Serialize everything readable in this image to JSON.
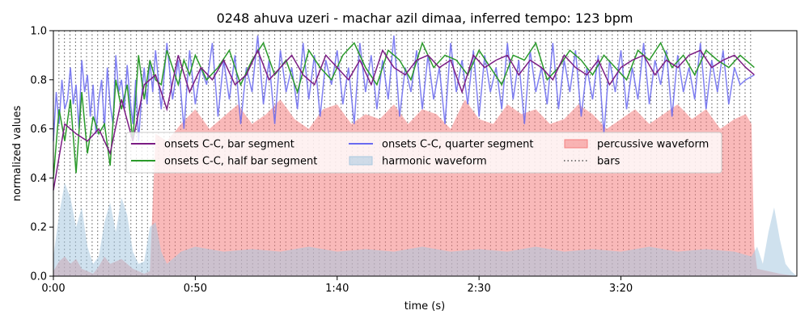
{
  "chart_data": {
    "type": "line",
    "title": "0248 ahuva uzeri - machar azil dimaa, inferred tempo: 123 bpm",
    "xlabel": "time (s)",
    "ylabel": "normalized values",
    "xlim": [
      0,
      262
    ],
    "ylim": [
      0,
      1
    ],
    "x_ticks": [
      {
        "value": 0,
        "label": "0:00"
      },
      {
        "value": 50,
        "label": "0:50"
      },
      {
        "value": 100,
        "label": "1:40"
      },
      {
        "value": 150,
        "label": "2:30"
      },
      {
        "value": 200,
        "label": "3:20"
      }
    ],
    "y_ticks": [
      {
        "value": 0.0,
        "label": "0.0"
      },
      {
        "value": 0.2,
        "label": "0.2"
      },
      {
        "value": 0.4,
        "label": "0.4"
      },
      {
        "value": 0.6,
        "label": "0.6"
      },
      {
        "value": 0.8,
        "label": "0.8"
      },
      {
        "value": 1.0,
        "label": "1.0"
      }
    ],
    "grid": false,
    "legend_position": "center",
    "bars_spacing_s": 1.95,
    "bars_end_s": 247,
    "series": [
      {
        "name": "onsets C-C, bar segment",
        "color": "#7b1c83",
        "kind": "line",
        "x": [
          0,
          4,
          8,
          12,
          16,
          20,
          24,
          28,
          32,
          36,
          40,
          44,
          48,
          52,
          56,
          60,
          64,
          68,
          72,
          76,
          80,
          84,
          88,
          92,
          96,
          100,
          104,
          108,
          112,
          116,
          120,
          124,
          128,
          132,
          136,
          140,
          144,
          148,
          152,
          156,
          160,
          164,
          168,
          172,
          176,
          180,
          184,
          188,
          192,
          196,
          200,
          204,
          208,
          212,
          216,
          220,
          224,
          228,
          232,
          236,
          240,
          244,
          247
        ],
        "values": [
          0.35,
          0.62,
          0.58,
          0.55,
          0.6,
          0.5,
          0.72,
          0.55,
          0.78,
          0.82,
          0.68,
          0.9,
          0.75,
          0.85,
          0.8,
          0.88,
          0.78,
          0.82,
          0.92,
          0.8,
          0.85,
          0.9,
          0.82,
          0.78,
          0.9,
          0.85,
          0.8,
          0.88,
          0.78,
          0.92,
          0.85,
          0.82,
          0.88,
          0.9,
          0.85,
          0.88,
          0.75,
          0.9,
          0.85,
          0.88,
          0.9,
          0.82,
          0.88,
          0.85,
          0.8,
          0.9,
          0.85,
          0.82,
          0.88,
          0.78,
          0.85,
          0.88,
          0.9,
          0.82,
          0.88,
          0.85,
          0.9,
          0.92,
          0.85,
          0.88,
          0.9,
          0.85,
          0.82
        ]
      },
      {
        "name": "onsets C-C, half bar segment",
        "color": "#2a9a2a",
        "kind": "line",
        "x": [
          0,
          2,
          4,
          6,
          8,
          10,
          12,
          14,
          16,
          18,
          20,
          22,
          24,
          26,
          28,
          30,
          32,
          34,
          36,
          38,
          40,
          42,
          44,
          46,
          48,
          50,
          54,
          58,
          62,
          66,
          70,
          74,
          78,
          82,
          86,
          90,
          94,
          98,
          102,
          106,
          110,
          114,
          118,
          122,
          126,
          130,
          134,
          138,
          142,
          146,
          150,
          154,
          158,
          162,
          166,
          170,
          174,
          178,
          182,
          186,
          190,
          194,
          198,
          202,
          206,
          210,
          214,
          218,
          222,
          226,
          230,
          234,
          238,
          242,
          247
        ],
        "values": [
          0.4,
          0.68,
          0.55,
          0.72,
          0.42,
          0.75,
          0.5,
          0.65,
          0.58,
          0.62,
          0.45,
          0.8,
          0.68,
          0.78,
          0.55,
          0.9,
          0.72,
          0.88,
          0.8,
          0.78,
          0.92,
          0.85,
          0.78,
          0.88,
          0.82,
          0.9,
          0.8,
          0.85,
          0.92,
          0.78,
          0.88,
          0.95,
          0.82,
          0.88,
          0.75,
          0.92,
          0.85,
          0.8,
          0.9,
          0.95,
          0.85,
          0.78,
          0.92,
          0.88,
          0.8,
          0.95,
          0.85,
          0.9,
          0.88,
          0.82,
          0.92,
          0.85,
          0.78,
          0.9,
          0.88,
          0.95,
          0.8,
          0.85,
          0.92,
          0.88,
          0.82,
          0.9,
          0.85,
          0.8,
          0.92,
          0.88,
          0.95,
          0.85,
          0.9,
          0.82,
          0.92,
          0.88,
          0.85,
          0.9,
          0.85
        ]
      },
      {
        "name": "onsets C-C, quarter segment",
        "color": "#6a6af0",
        "kind": "line",
        "x": [
          0,
          1,
          2,
          3,
          4,
          5,
          6,
          7,
          8,
          9,
          10,
          11,
          12,
          13,
          14,
          15,
          16,
          17,
          18,
          19,
          20,
          21,
          22,
          23,
          24,
          25,
          26,
          27,
          28,
          29,
          30,
          31,
          32,
          33,
          34,
          35,
          36,
          38,
          40,
          42,
          44,
          46,
          48,
          50,
          52,
          54,
          56,
          58,
          60,
          62,
          64,
          66,
          68,
          70,
          72,
          74,
          76,
          78,
          80,
          82,
          84,
          86,
          88,
          90,
          92,
          94,
          96,
          98,
          100,
          102,
          104,
          106,
          108,
          110,
          112,
          114,
          116,
          118,
          120,
          122,
          124,
          126,
          128,
          130,
          132,
          134,
          136,
          138,
          140,
          142,
          144,
          146,
          148,
          150,
          152,
          154,
          156,
          158,
          160,
          162,
          164,
          166,
          168,
          170,
          172,
          174,
          176,
          178,
          180,
          182,
          184,
          186,
          188,
          190,
          192,
          194,
          196,
          198,
          200,
          202,
          204,
          206,
          208,
          210,
          212,
          214,
          216,
          218,
          220,
          222,
          224,
          226,
          228,
          230,
          232,
          234,
          236,
          238,
          240,
          242,
          244,
          247
        ],
        "values": [
          0.55,
          0.75,
          0.62,
          0.8,
          0.68,
          0.72,
          0.85,
          0.7,
          0.78,
          0.6,
          0.88,
          0.75,
          0.82,
          0.65,
          0.78,
          0.58,
          0.72,
          0.8,
          0.6,
          0.85,
          0.7,
          0.62,
          0.9,
          0.75,
          0.8,
          0.68,
          0.86,
          0.72,
          0.62,
          0.8,
          0.55,
          0.72,
          0.85,
          0.7,
          0.88,
          0.75,
          0.92,
          0.68,
          0.95,
          0.72,
          0.88,
          0.6,
          0.92,
          0.7,
          0.85,
          0.78,
          0.95,
          0.65,
          0.88,
          0.72,
          0.9,
          0.62,
          0.85,
          0.75,
          0.98,
          0.7,
          0.88,
          0.62,
          0.92,
          0.75,
          0.85,
          0.68,
          0.95,
          0.72,
          0.9,
          0.65,
          0.88,
          0.78,
          0.92,
          0.7,
          0.85,
          0.62,
          0.95,
          0.75,
          0.9,
          0.68,
          0.88,
          0.72,
          0.98,
          0.65,
          0.85,
          0.75,
          0.92,
          0.68,
          0.9,
          0.72,
          0.85,
          0.62,
          0.95,
          0.75,
          0.88,
          0.7,
          0.92,
          0.65,
          0.9,
          0.75,
          0.85,
          0.68,
          0.95,
          0.72,
          0.88,
          0.62,
          0.92,
          0.75,
          0.85,
          0.7,
          0.95,
          0.68,
          0.88,
          0.75,
          0.92,
          0.65,
          0.85,
          0.72,
          0.9,
          0.58,
          0.88,
          0.75,
          0.92,
          0.68,
          0.85,
          0.72,
          0.95,
          0.7,
          0.88,
          0.78,
          0.92,
          0.65,
          0.9,
          0.75,
          0.85,
          0.72,
          0.95,
          0.68,
          0.88,
          0.75,
          0.92,
          0.7,
          0.85,
          0.78,
          0.8,
          0.82
        ]
      },
      {
        "name": "harmonic waveform",
        "color": "#a8c8e0",
        "kind": "area",
        "x": [
          0,
          2,
          4,
          6,
          8,
          10,
          12,
          14,
          16,
          18,
          20,
          22,
          24,
          26,
          28,
          30,
          32,
          34,
          36,
          38,
          40,
          45,
          50,
          60,
          70,
          80,
          90,
          100,
          110,
          120,
          130,
          140,
          150,
          160,
          170,
          180,
          190,
          200,
          210,
          220,
          230,
          240,
          246,
          248,
          250,
          252,
          254,
          256,
          258,
          260,
          262
        ],
        "values": [
          0.08,
          0.25,
          0.38,
          0.32,
          0.2,
          0.28,
          0.12,
          0.05,
          0.08,
          0.22,
          0.3,
          0.18,
          0.32,
          0.25,
          0.1,
          0.05,
          0.06,
          0.2,
          0.22,
          0.1,
          0.05,
          0.1,
          0.12,
          0.1,
          0.11,
          0.1,
          0.12,
          0.1,
          0.11,
          0.1,
          0.12,
          0.1,
          0.11,
          0.1,
          0.12,
          0.1,
          0.11,
          0.1,
          0.12,
          0.1,
          0.11,
          0.1,
          0.08,
          0.12,
          0.05,
          0.18,
          0.28,
          0.15,
          0.05,
          0.02,
          0.0
        ]
      },
      {
        "name": "percussive waveform",
        "color": "#f47f7f",
        "kind": "area",
        "x": [
          0,
          2,
          4,
          6,
          8,
          10,
          12,
          14,
          16,
          18,
          20,
          22,
          24,
          26,
          28,
          30,
          32,
          34,
          35,
          36,
          40,
          45,
          50,
          55,
          60,
          65,
          70,
          75,
          80,
          85,
          90,
          95,
          100,
          105,
          110,
          115,
          120,
          125,
          130,
          135,
          140,
          145,
          150,
          155,
          160,
          165,
          170,
          175,
          180,
          185,
          190,
          195,
          200,
          205,
          210,
          215,
          220,
          225,
          230,
          235,
          240,
          244,
          246,
          247,
          248,
          252,
          256,
          262
        ],
        "values": [
          0.02,
          0.06,
          0.08,
          0.05,
          0.07,
          0.03,
          0.02,
          0.01,
          0.04,
          0.08,
          0.05,
          0.06,
          0.07,
          0.05,
          0.03,
          0.02,
          0.01,
          0.02,
          0.3,
          0.58,
          0.55,
          0.62,
          0.68,
          0.6,
          0.65,
          0.7,
          0.62,
          0.66,
          0.72,
          0.64,
          0.6,
          0.68,
          0.7,
          0.62,
          0.66,
          0.64,
          0.7,
          0.62,
          0.68,
          0.66,
          0.6,
          0.72,
          0.64,
          0.62,
          0.7,
          0.66,
          0.68,
          0.62,
          0.64,
          0.7,
          0.66,
          0.6,
          0.64,
          0.68,
          0.62,
          0.66,
          0.7,
          0.64,
          0.68,
          0.6,
          0.64,
          0.66,
          0.62,
          0.12,
          0.03,
          0.02,
          0.01,
          0.0
        ]
      },
      {
        "name": "bars",
        "color": "#555555",
        "kind": "vlines"
      }
    ]
  },
  "legend_order": [
    0,
    1,
    2,
    3,
    4,
    5
  ]
}
